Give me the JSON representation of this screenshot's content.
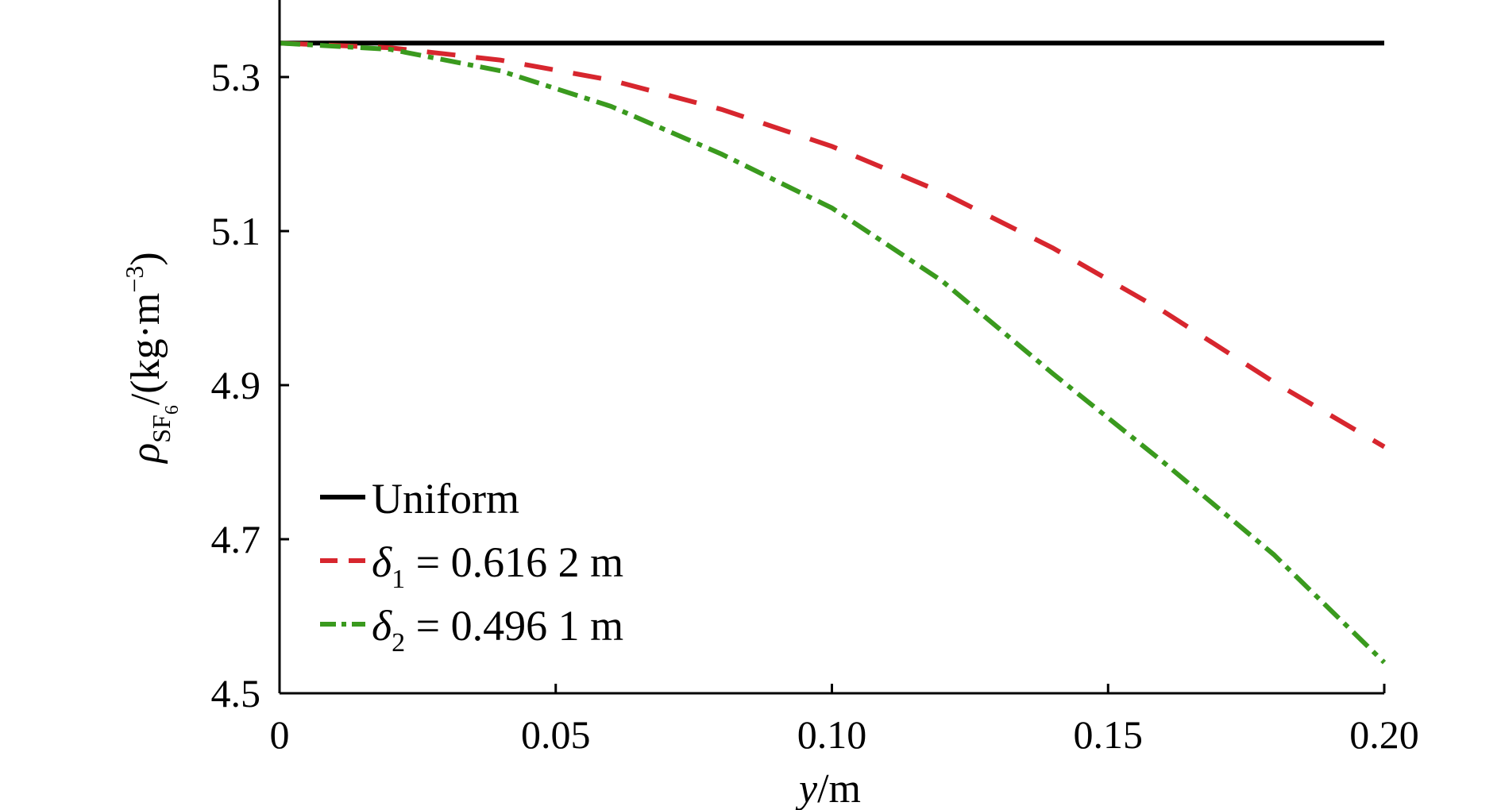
{
  "chart_data": {
    "type": "line",
    "xlabel": {
      "italic": "y",
      "rest": "/m"
    },
    "ylabel": {
      "rho": "ρ",
      "sub": "SF",
      "subsub": "6",
      "rest": "/(kg·m",
      "sup": "−3",
      "close": ")"
    },
    "xlim": [
      0,
      0.2
    ],
    "ylim": [
      4.5,
      5.4
    ],
    "x_ticks": [
      0,
      0.05,
      0.1,
      0.15,
      0.2
    ],
    "x_tick_labels": [
      "0",
      "0.05",
      "0.10",
      "0.15",
      "0.20"
    ],
    "y_ticks": [
      4.5,
      4.7,
      4.9,
      5.1,
      5.3
    ],
    "y_tick_labels": [
      "4.5",
      "4.7",
      "4.9",
      "5.1",
      "5.3"
    ],
    "grid": false,
    "legend_position": "bottom-left",
    "series": [
      {
        "name": "Uniform",
        "label": {
          "main": "Uniform"
        },
        "color": "#000000",
        "style": "solid",
        "x": [
          0,
          0.02,
          0.04,
          0.06,
          0.08,
          0.1,
          0.12,
          0.14,
          0.16,
          0.18,
          0.2
        ],
        "y": [
          5.344,
          5.344,
          5.344,
          5.344,
          5.344,
          5.344,
          5.344,
          5.344,
          5.344,
          5.344,
          5.344
        ]
      },
      {
        "name": "δ1 = 0.616 2 m",
        "label": {
          "sym": "δ",
          "sub": "1",
          "rest": " = 0.616 2 m"
        },
        "color": "#d7262e",
        "style": "dashed",
        "x": [
          0,
          0.02,
          0.04,
          0.06,
          0.08,
          0.1,
          0.12,
          0.14,
          0.16,
          0.18,
          0.2
        ],
        "y": [
          5.344,
          5.338,
          5.322,
          5.296,
          5.258,
          5.21,
          5.15,
          5.078,
          4.996,
          4.904,
          4.82
        ]
      },
      {
        "name": "δ2 = 0.496 1 m",
        "label": {
          "sym": "δ",
          "sub": "2",
          "rest": " = 0.496 1 m"
        },
        "color": "#3a9a1e",
        "style": "dashdot",
        "x": [
          0,
          0.02,
          0.04,
          0.06,
          0.08,
          0.1,
          0.12,
          0.14,
          0.16,
          0.18,
          0.2
        ],
        "y": [
          5.344,
          5.336,
          5.308,
          5.262,
          5.2,
          5.13,
          5.035,
          4.915,
          4.8,
          4.68,
          4.54
        ]
      }
    ]
  }
}
